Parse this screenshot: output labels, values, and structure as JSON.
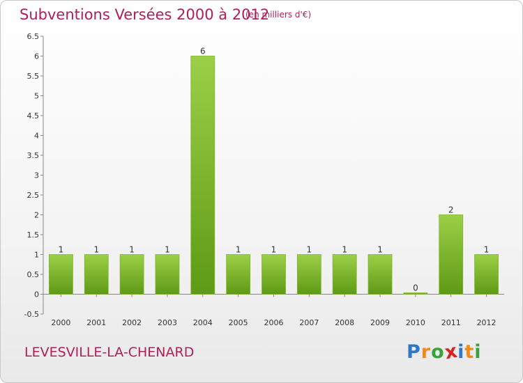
{
  "header": {
    "title": "Subventions Versées 2000 à 2012",
    "subtitle": "(en milliers d'€)"
  },
  "footer": {
    "commune": "LEVESVILLE-LA-CHENARD",
    "logo_letters": [
      "P",
      "r",
      "o",
      "x",
      "i",
      "t",
      "i"
    ],
    "logo_colors": [
      "#2f77c9",
      "#f08a1c",
      "#38a33a",
      "#d9231f",
      "#2f77c9",
      "#f08a1c",
      "#38a33a"
    ]
  },
  "chart_data": {
    "type": "bar",
    "categories": [
      "2000",
      "2001",
      "2002",
      "2003",
      "2004",
      "2005",
      "2006",
      "2007",
      "2008",
      "2009",
      "2010",
      "2011",
      "2012"
    ],
    "values": [
      1,
      1,
      1,
      1,
      6,
      1,
      1,
      1,
      1,
      1,
      0,
      2,
      1
    ],
    "data_labels": [
      "1",
      "1",
      "1",
      "1",
      "6",
      "1",
      "1",
      "1",
      "1",
      "1",
      "0",
      "2",
      "1"
    ],
    "title": "Subventions Versées 2000 à 2012",
    "xlabel": "",
    "ylabel": "",
    "ylim": [
      -0.5,
      6.5
    ],
    "yticks": [
      -0.5,
      0,
      0.5,
      1,
      1.5,
      2,
      2.5,
      3,
      3.5,
      4,
      4.5,
      5,
      5.5,
      6,
      6.5
    ],
    "ytick_labels": [
      "-0.5",
      "0",
      "0.5",
      "1",
      "1.5",
      "2",
      "2.5",
      "3",
      "3.5",
      "4",
      "4.5",
      "5",
      "5.5",
      "6",
      "6.5"
    ],
    "grid": false,
    "bar_color_top": "#9ccf48",
    "bar_color_bottom": "#5e9a15"
  }
}
